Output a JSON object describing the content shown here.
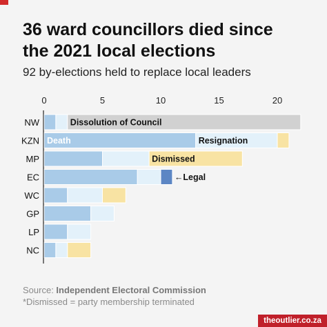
{
  "title": "36 ward  councillors died since\nthe 2021 local elections",
  "subtitle": "92 by-elections held to replace local leaders",
  "source_prefix": "Source: ",
  "source_name": "Independent Electoral Commission",
  "footnote": "*Dismissed = party membership terminated",
  "brand": "theoutlier.co.za",
  "colors": {
    "accent": "#d22b2b",
    "death": "#a9cbe8",
    "resignation": "#e3f1fa",
    "dismissed": "#f8e3a3",
    "legal": "#5c86c4",
    "dissolution": "#d1d1d1",
    "brand_bg": "#c0202a"
  },
  "chart_data": {
    "type": "bar",
    "orientation": "horizontal",
    "stacked": true,
    "categories": [
      "NW",
      "KZN",
      "MP",
      "EC",
      "WC",
      "GP",
      "LP",
      "NC"
    ],
    "series": [
      {
        "name": "Death",
        "color": "#a9cbe8",
        "values": [
          1,
          13,
          5,
          8,
          2,
          4,
          2,
          1
        ]
      },
      {
        "name": "Resignation",
        "color": "#e3f1fa",
        "values": [
          1,
          7,
          4,
          2,
          3,
          2,
          2,
          1
        ]
      },
      {
        "name": "Dismissed",
        "color": "#f8e3a3",
        "values": [
          0,
          1,
          8,
          0,
          2,
          0,
          0,
          2
        ]
      },
      {
        "name": "Legal",
        "color": "#5c86c4",
        "values": [
          0,
          0,
          0,
          1,
          0,
          0,
          0,
          0
        ]
      },
      {
        "name": "Dissolution of Council",
        "color": "#d1d1d1",
        "values": [
          20,
          0,
          0,
          0,
          0,
          0,
          0,
          0
        ]
      }
    ],
    "segment_labels": [
      {
        "series": "Dissolution of Council",
        "category": "NW",
        "text": "Dissolution of Council",
        "color": "#111111"
      },
      {
        "series": "Death",
        "category": "KZN",
        "text": "Death",
        "color": "#ffffff"
      },
      {
        "series": "Resignation",
        "category": "KZN",
        "text": "Resignation",
        "color": "#111111"
      },
      {
        "series": "Dismissed",
        "category": "MP",
        "text": "Dismissed",
        "color": "#111111"
      },
      {
        "series": "Legal",
        "category": "EC",
        "text": "←Legal",
        "color": "#111111",
        "outside": true
      }
    ],
    "xticks": [
      0,
      5,
      10,
      15,
      20
    ],
    "xlim": [
      0,
      22
    ],
    "grid": false
  }
}
